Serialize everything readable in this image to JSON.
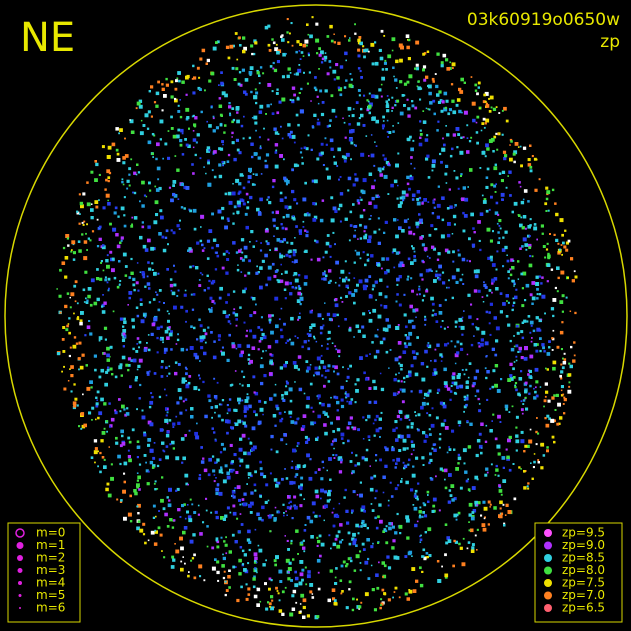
{
  "header": {
    "corner": "NE",
    "frame": "03k60919o0650w",
    "mode": "zp"
  },
  "magnitude_legend": {
    "labels": [
      "m=0",
      "m=1",
      "m=2",
      "m=3",
      "m=4",
      "m=5",
      "m=6"
    ],
    "color": "#e020e0"
  },
  "zeropoint_legend": [
    {
      "label": "zp=9.5",
      "color": "#ff50ff"
    },
    {
      "label": "zp=9.0",
      "color": "#b030ff"
    },
    {
      "label": "zp=8.5",
      "color": "#30d0e0"
    },
    {
      "label": "zp=8.0",
      "color": "#40e040"
    },
    {
      "label": "zp=7.5",
      "color": "#f0e000"
    },
    {
      "label": "zp=7.0",
      "color": "#ff8020"
    },
    {
      "label": "zp=6.5",
      "color": "#ff6070"
    }
  ]
}
